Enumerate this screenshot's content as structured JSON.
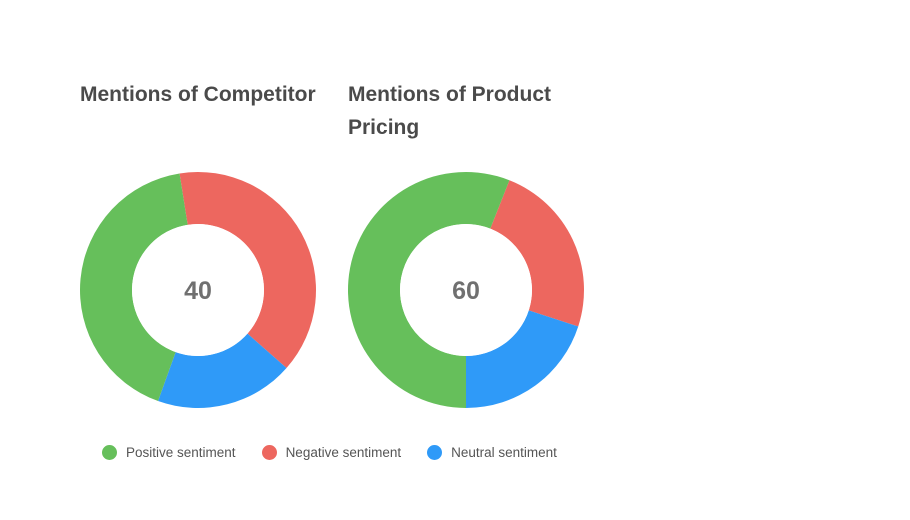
{
  "chart_data": [
    {
      "type": "pie",
      "donut": true,
      "title": "Mentions of Competitor",
      "center_label": "40",
      "categories": [
        "Positive sentiment",
        "Negative sentiment",
        "Neutral sentiment"
      ],
      "values": [
        42,
        39,
        19
      ],
      "colors": [
        "#66bf5b",
        "#ed675f",
        "#2f9af8"
      ]
    },
    {
      "type": "pie",
      "donut": true,
      "title": "Mentions of Product Pricing",
      "center_label": "60",
      "categories": [
        "Positive sentiment",
        "Negative sentiment",
        "Neutral sentiment"
      ],
      "values": [
        56,
        24,
        20
      ],
      "colors": [
        "#66bf5b",
        "#ed675f",
        "#2f9af8"
      ]
    }
  ],
  "legend": {
    "position": "bottom",
    "items": [
      {
        "label": "Positive sentiment",
        "color": "#66bf5b"
      },
      {
        "label": "Negative sentiment",
        "color": "#ed675f"
      },
      {
        "label": "Neutral sentiment",
        "color": "#2f9af8"
      }
    ]
  }
}
